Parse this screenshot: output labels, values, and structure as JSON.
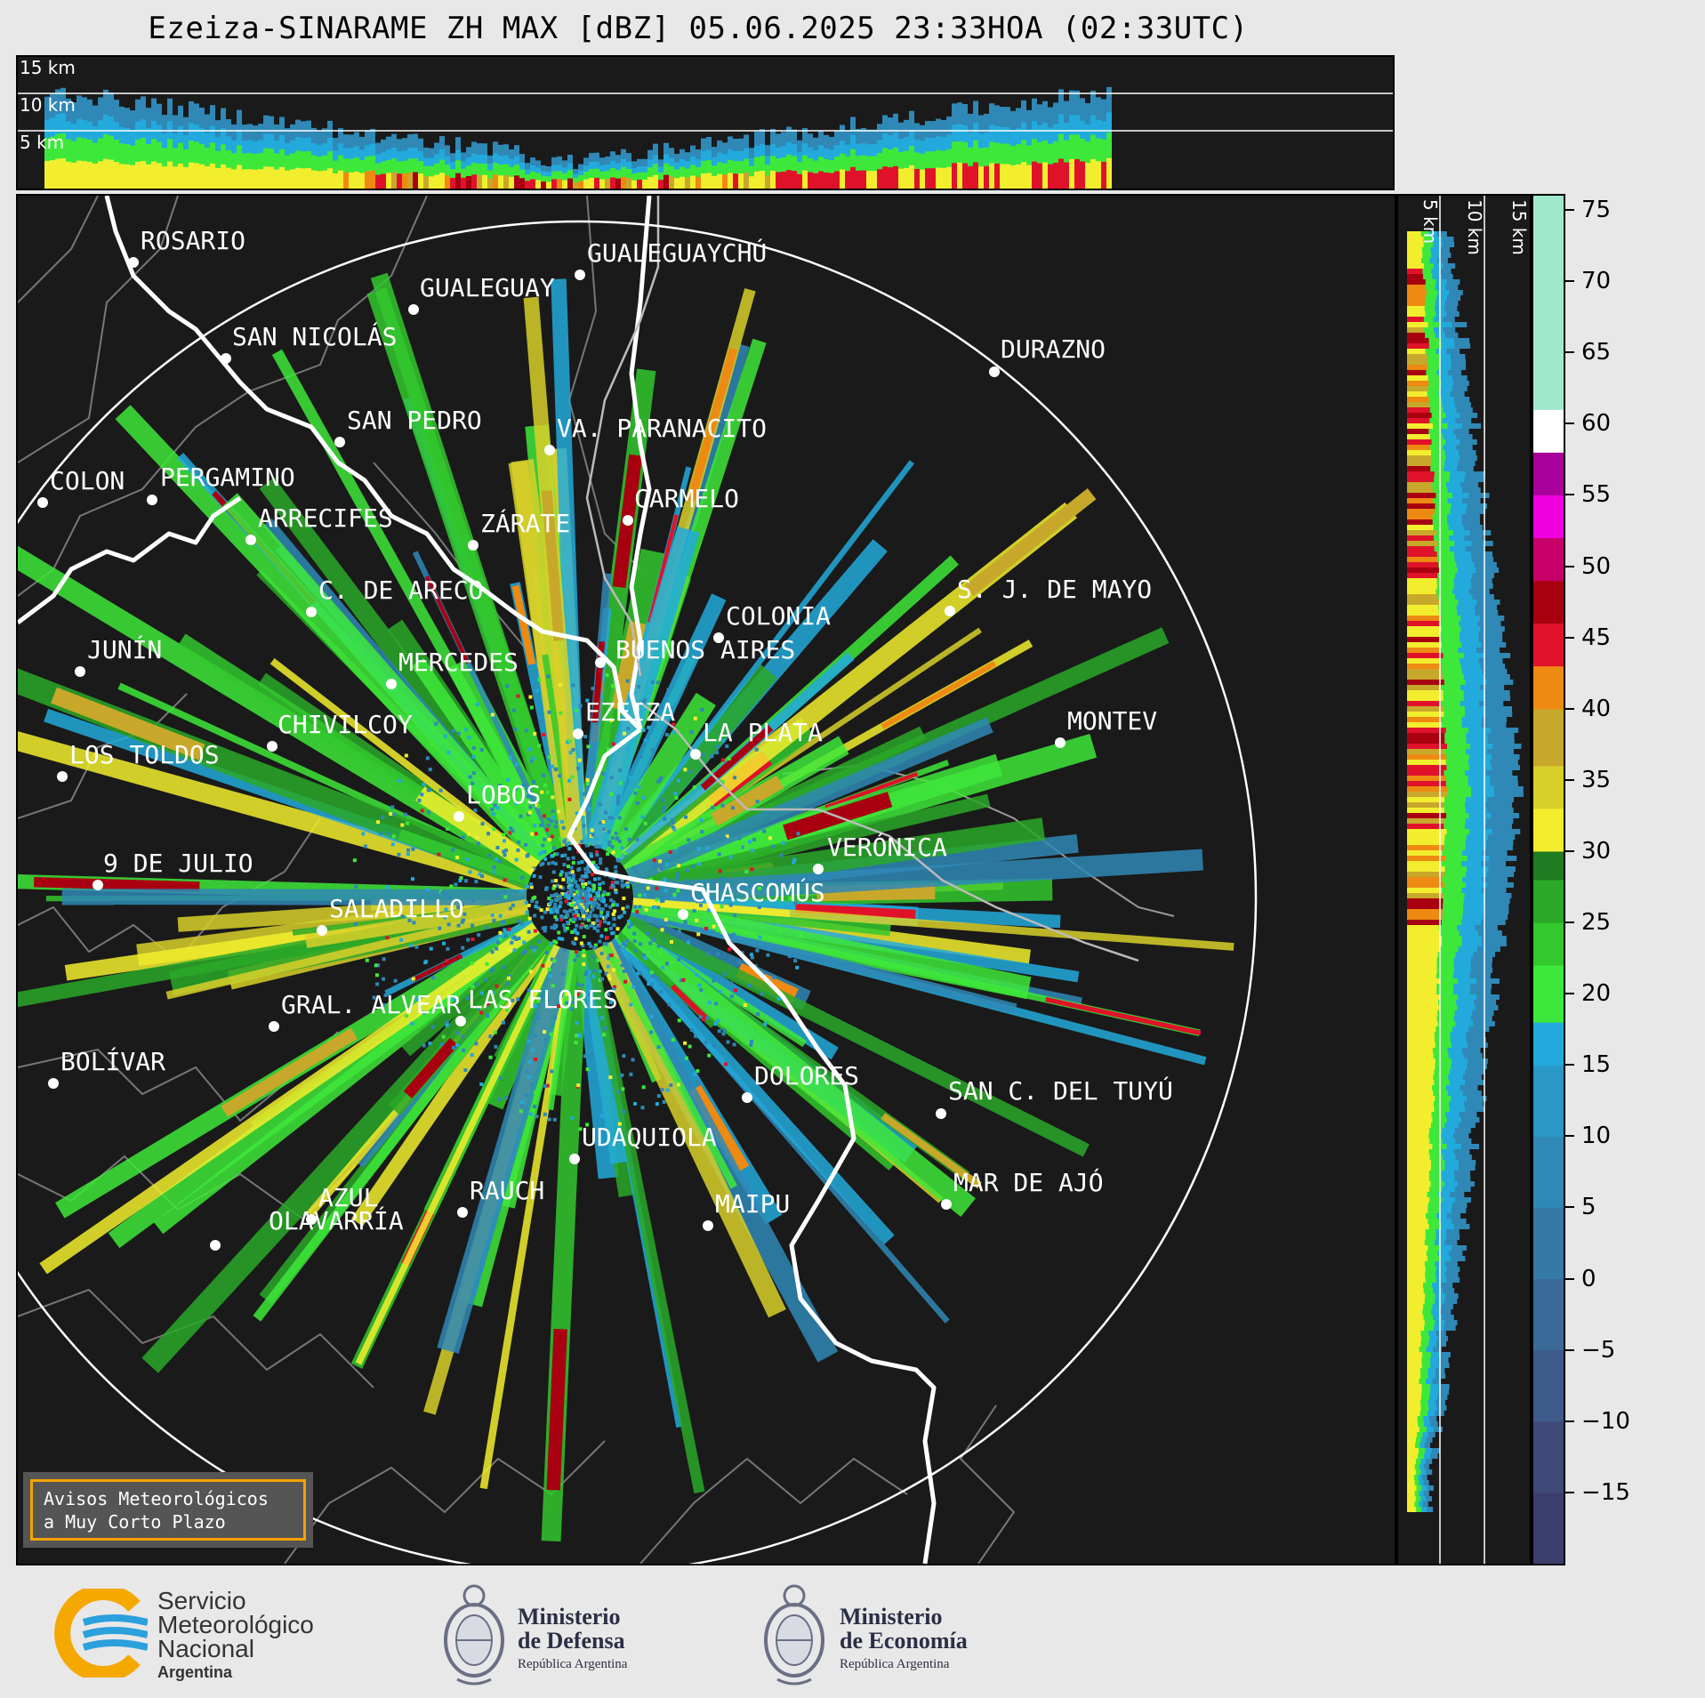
{
  "title": "Ezeiza-SINARAME ZH MAX [dBZ] 05.06.2025 23:33HOA (02:33UTC)",
  "top_section_levels": [
    "15 km",
    "10 km",
    "5 km"
  ],
  "side_section_levels": [
    "5 km",
    "10 km",
    "15 km"
  ],
  "colorbar": {
    "unit": "dBZ",
    "ticks": [
      "75",
      "70",
      "65",
      "60",
      "55",
      "50",
      "45",
      "40",
      "35",
      "30",
      "25",
      "20",
      "15",
      "10",
      "5",
      "0",
      "−5",
      "−10",
      "−15"
    ],
    "tick_values": [
      75,
      70,
      65,
      60,
      55,
      50,
      45,
      40,
      35,
      30,
      25,
      20,
      15,
      10,
      5,
      0,
      -5,
      -10,
      -15
    ],
    "range": [
      -20,
      76
    ],
    "colors": [
      {
        "from": -20,
        "to": -15,
        "color": "#3c3f6e"
      },
      {
        "from": -15,
        "to": -10,
        "color": "#404a7a"
      },
      {
        "from": -10,
        "to": -5,
        "color": "#3d5a8a"
      },
      {
        "from": -5,
        "to": 0,
        "color": "#3a6a98"
      },
      {
        "from": 0,
        "to": 5,
        "color": "#357aa6"
      },
      {
        "from": 5,
        "to": 10,
        "color": "#2f88b6"
      },
      {
        "from": 10,
        "to": 15,
        "color": "#2a98c6"
      },
      {
        "from": 15,
        "to": 18,
        "color": "#23aadc"
      },
      {
        "from": 18,
        "to": 22,
        "color": "#3ee83a"
      },
      {
        "from": 22,
        "to": 25,
        "color": "#33c82e"
      },
      {
        "from": 25,
        "to": 28,
        "color": "#2aa828"
      },
      {
        "from": 28,
        "to": 30,
        "color": "#1f7c22"
      },
      {
        "from": 30,
        "to": 33,
        "color": "#f2ee2e"
      },
      {
        "from": 33,
        "to": 36,
        "color": "#d8d02a"
      },
      {
        "from": 36,
        "to": 40,
        "color": "#c8a82a"
      },
      {
        "from": 40,
        "to": 43,
        "color": "#ee8a12"
      },
      {
        "from": 43,
        "to": 46,
        "color": "#e0122a"
      },
      {
        "from": 46,
        "to": 49,
        "color": "#a80010"
      },
      {
        "from": 49,
        "to": 52,
        "color": "#c8006a"
      },
      {
        "from": 52,
        "to": 55,
        "color": "#f000e0"
      },
      {
        "from": 55,
        "to": 58,
        "color": "#a8009a"
      },
      {
        "from": 58,
        "to": 61,
        "color": "#ffffff"
      },
      {
        "from": 61,
        "to": 76,
        "color": "#9fe8cc"
      }
    ]
  },
  "cities": [
    {
      "name": "ROSARIO"
    },
    {
      "name": "GUALEGUAYCHÚ"
    },
    {
      "name": "GUALEGUAY"
    },
    {
      "name": "SAN NICOLÁS"
    },
    {
      "name": "DURAZNO"
    },
    {
      "name": "SAN PEDRO"
    },
    {
      "name": "VA. PARANACITO"
    },
    {
      "name": "COLON"
    },
    {
      "name": "PERGAMINO"
    },
    {
      "name": "CARMELO"
    },
    {
      "name": "ARRECIFES"
    },
    {
      "name": "ZÁRATE"
    },
    {
      "name": "S. J. DE MAYO"
    },
    {
      "name": "C. DE ARECO"
    },
    {
      "name": "COLONIA"
    },
    {
      "name": "JUNÍN"
    },
    {
      "name": "BUENOS AIRES"
    },
    {
      "name": "MERCEDES"
    },
    {
      "name": "EZEIZA"
    },
    {
      "name": "MONTEV"
    },
    {
      "name": "CHIVILCOY"
    },
    {
      "name": "LA PLATA"
    },
    {
      "name": "LOS TOLDOS"
    },
    {
      "name": "LOBOS"
    },
    {
      "name": "VERÓNICA"
    },
    {
      "name": "9 DE JULIO"
    },
    {
      "name": "CHASCOMÚS"
    },
    {
      "name": "SALADILLO"
    },
    {
      "name": "GRAL. ALVEAR"
    },
    {
      "name": "LAS FLORES"
    },
    {
      "name": "BOLÍVAR"
    },
    {
      "name": "DOLORES"
    },
    {
      "name": "SAN C. DEL TUYÚ"
    },
    {
      "name": "UDAQUIOLA"
    },
    {
      "name": "MAR DE AJÓ"
    },
    {
      "name": "AZUL"
    },
    {
      "name": "RAUCH"
    },
    {
      "name": "OLAVARRÍA"
    },
    {
      "name": "MAIPU"
    }
  ],
  "avisos": {
    "line1": "Avisos Meteorológicos",
    "line2": "a Muy Corto Plazo"
  },
  "logos": {
    "smn": {
      "line1": "Servicio",
      "line2": "Meteorológico",
      "line3": "Nacional",
      "line4": "Argentina"
    },
    "defensa": {
      "line1": "Ministerio",
      "line2": "de Defensa",
      "line3": "República Argentina"
    },
    "economia": {
      "line1": "Ministerio",
      "line2": "de Economía",
      "line3": "República Argentina"
    }
  }
}
